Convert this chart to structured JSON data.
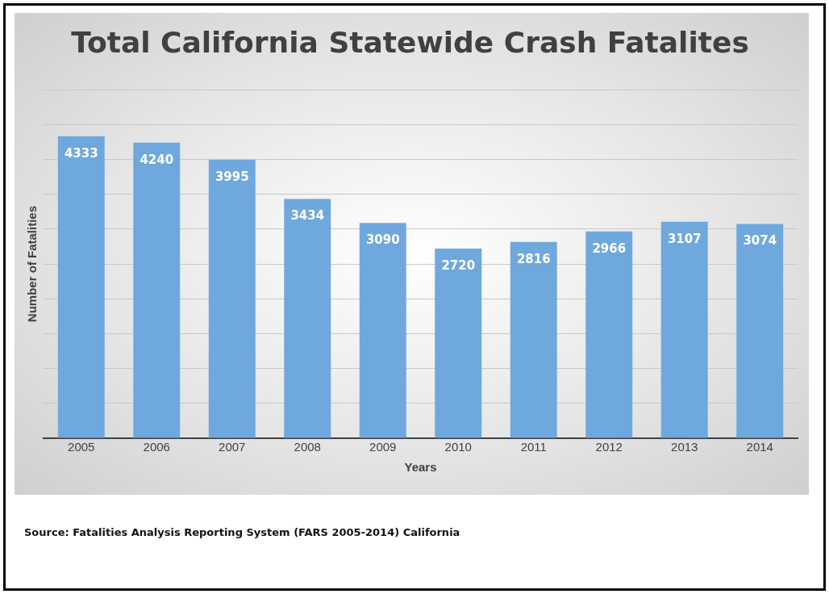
{
  "chart_data": {
    "type": "bar",
    "title": "Total California Statewide Crash Fatalites",
    "xlabel": "Years",
    "ylabel": "Number of Fatalities",
    "categories": [
      "2005",
      "2006",
      "2007",
      "2008",
      "2009",
      "2010",
      "2011",
      "2012",
      "2013",
      "2014"
    ],
    "values": [
      4333,
      4240,
      3995,
      3434,
      3090,
      2720,
      2816,
      2966,
      3107,
      3074
    ],
    "color": "#6fa8dc",
    "ylim": [
      0,
      5000
    ],
    "yticks": [
      {
        "value": 0,
        "label": null
      },
      {
        "value": 500,
        "label": null
      },
      {
        "value": 1000,
        "label": null
      },
      {
        "value": 1500,
        "label": null
      },
      {
        "value": 2000,
        "label": null
      },
      {
        "value": 2500,
        "label": null
      },
      {
        "value": 3000,
        "label": null
      },
      {
        "value": 3500,
        "label": null
      },
      {
        "value": 4000,
        "label": null
      },
      {
        "value": 4500,
        "label": null
      },
      {
        "value": 5000,
        "label": null
      }
    ],
    "grid": "y",
    "tick_labels": "x",
    "data_labels": true,
    "legend": false,
    "annotations": [
      "Source:  Fatalities Analysis Reporting System (FARS 2005-2014) California"
    ]
  }
}
